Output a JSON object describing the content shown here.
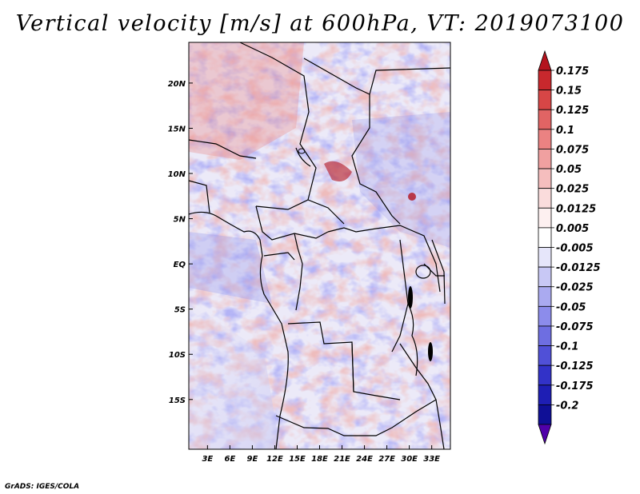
{
  "title": "Vertical velocity [m/s] at 600hPa, VT: 2019073100",
  "credit": "GrADS: IGES/COLA",
  "map": {
    "lon_min": 0.5,
    "lon_max": 35.5,
    "lat_min": -20.5,
    "lat_max": 24.5,
    "lat_ticks": [
      {
        "value": 20,
        "label": "20N"
      },
      {
        "value": 15,
        "label": "15N"
      },
      {
        "value": 10,
        "label": "10N"
      },
      {
        "value": 5,
        "label": "5N"
      },
      {
        "value": 0,
        "label": "EQ"
      },
      {
        "value": -5,
        "label": "5S"
      },
      {
        "value": -10,
        "label": "10S"
      },
      {
        "value": -15,
        "label": "15S"
      }
    ],
    "lon_ticks": [
      {
        "value": 3,
        "label": "3E"
      },
      {
        "value": 6,
        "label": "6E"
      },
      {
        "value": 9,
        "label": "9E"
      },
      {
        "value": 12,
        "label": "12E"
      },
      {
        "value": 15,
        "label": "15E"
      },
      {
        "value": 18,
        "label": "18E"
      },
      {
        "value": 21,
        "label": "21E"
      },
      {
        "value": 24,
        "label": "24E"
      },
      {
        "value": 27,
        "label": "27E"
      },
      {
        "value": 30,
        "label": "30E"
      },
      {
        "value": 33,
        "label": "33E"
      }
    ]
  },
  "colorbar": {
    "labels": [
      "0.175",
      "0.15",
      "0.125",
      "0.1",
      "0.075",
      "0.05",
      "0.025",
      "0.0125",
      "0.005",
      "-0.005",
      "-0.0125",
      "-0.025",
      "-0.05",
      "-0.075",
      "-0.1",
      "-0.125",
      "-0.175",
      "-0.2"
    ],
    "colors": [
      "#b4141e",
      "#c8282d",
      "#d74646",
      "#e16464",
      "#eb8282",
      "#f0a0a0",
      "#f5bebe",
      "#fadcdc",
      "#fdf0f0",
      "#ffffff",
      "#e6e6fa",
      "#c8c8f5",
      "#aaaaf0",
      "#8c8ceb",
      "#6e6ee1",
      "#5050d7",
      "#3232c8",
      "#1e1eb4",
      "#0f0f96",
      "#5000aa"
    ]
  }
}
